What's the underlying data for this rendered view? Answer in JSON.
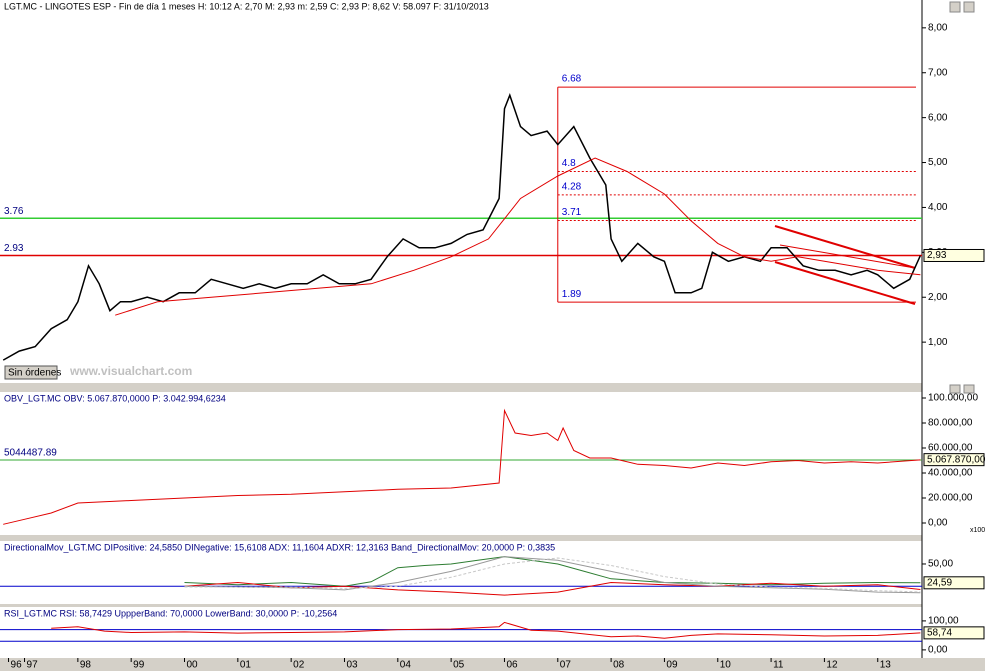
{
  "chart_data": [
    {
      "type": "line",
      "header": "LGT.MC - LINGOTES ESP - Fin de día 1 meses H: 10:12 A: 2,70 M: 2,93 m: 2,59 C: 2,93 P: 8,62 V: 58.097 F: 31/10/2013",
      "watermark": "www.visualchart.com",
      "button": "Sin órdenes",
      "xlim": [
        1996.54,
        2013.83
      ],
      "ylim": [
        0.09,
        8.62
      ],
      "yticks": [
        {
          "value": 8,
          "label": "8,00"
        },
        {
          "value": 7,
          "label": "7,00"
        },
        {
          "value": 6,
          "label": "6,00"
        },
        {
          "value": 5,
          "label": "5,00"
        },
        {
          "value": 4,
          "label": "4,00"
        },
        {
          "value": 3,
          "label": "3,00"
        },
        {
          "value": 2,
          "label": "2,00"
        },
        {
          "value": 1,
          "label": "1,00"
        }
      ],
      "series": [
        {
          "color": "#000000",
          "x": [
            1996.6,
            1996.9,
            1997.2,
            1997.5,
            1997.8,
            1998.0,
            1998.2,
            1998.4,
            1998.6,
            1998.8,
            1999.0,
            1999.3,
            1999.6,
            1999.9,
            2000.2,
            2000.5,
            2000.8,
            2001.1,
            2001.4,
            2001.7,
            2002.0,
            2002.3,
            2002.6,
            2002.9,
            2003.2,
            2003.5,
            2003.8,
            2004.1,
            2004.4,
            2004.7,
            2005.0,
            2005.3,
            2005.6,
            2005.9,
            2006.0,
            2006.1,
            2006.3,
            2006.5,
            2006.8,
            2007.0,
            2007.3,
            2007.6,
            2007.9,
            2008.0,
            2008.2,
            2008.5,
            2008.8,
            2009.0,
            2009.2,
            2009.5,
            2009.7,
            2009.9,
            2010.2,
            2010.5,
            2010.8,
            2011.0,
            2011.3,
            2011.6,
            2011.9,
            2012.2,
            2012.5,
            2012.8,
            2013.0,
            2013.3,
            2013.6,
            2013.8
          ],
          "values": [
            0.6,
            0.8,
            0.9,
            1.3,
            1.5,
            1.9,
            2.7,
            2.3,
            1.7,
            1.9,
            1.9,
            2.0,
            1.9,
            2.1,
            2.1,
            2.4,
            2.3,
            2.2,
            2.3,
            2.2,
            2.3,
            2.3,
            2.5,
            2.3,
            2.3,
            2.4,
            2.9,
            3.3,
            3.1,
            3.1,
            3.2,
            3.4,
            3.5,
            4.2,
            6.2,
            6.5,
            5.8,
            5.6,
            5.7,
            5.4,
            5.8,
            5.1,
            4.5,
            3.3,
            2.8,
            3.2,
            2.9,
            2.8,
            2.1,
            2.1,
            2.2,
            3.0,
            2.8,
            2.9,
            2.8,
            3.1,
            3.1,
            2.7,
            2.6,
            2.6,
            2.5,
            2.6,
            2.5,
            2.2,
            2.4,
            2.93
          ]
        },
        {
          "color": "#e00000",
          "x": [
            1998.7,
            1999.5,
            2000.5,
            2001.5,
            2002.5,
            2003.5,
            2004.3,
            2005.0,
            2005.7,
            2006.3,
            2007.0,
            2007.7,
            2008.3,
            2009.0,
            2009.5,
            2010.0,
            2010.5,
            2011.0,
            2011.5,
            2012.0,
            2012.5,
            2013.0,
            2013.8
          ],
          "values": [
            1.6,
            1.9,
            2.0,
            2.1,
            2.2,
            2.3,
            2.6,
            2.9,
            3.3,
            4.2,
            4.7,
            5.1,
            4.8,
            4.3,
            3.7,
            3.2,
            2.9,
            2.8,
            2.9,
            2.8,
            2.7,
            2.6,
            2.5
          ]
        }
      ],
      "hlines": [
        {
          "value": 3.76,
          "color": "#33cc33"
        },
        {
          "value": 2.93,
          "color": "#e00000"
        }
      ],
      "levels_start": 2007.0,
      "levels": [
        6.68,
        4.8,
        4.28,
        3.71,
        1.89
      ],
      "last": {
        "value": 2.93,
        "label": "2,93"
      }
    },
    {
      "type": "line",
      "header": "OBV_LGT.MC OBV: 5.067.870,0000 P: 3.042.994,6234",
      "scale_note": "x100",
      "xlim": [
        1996.54,
        2013.83
      ],
      "ylim": [
        -9600,
        104800
      ],
      "yticks": [
        {
          "value": 100000,
          "label": "100.000,00"
        },
        {
          "value": 80000,
          "label": "80.000,00"
        },
        {
          "value": 60000,
          "label": "60.000,00"
        },
        {
          "value": 40000,
          "label": "40.000,00"
        },
        {
          "value": 20000,
          "label": "20.000,00"
        },
        {
          "value": 0,
          "label": "0,00"
        }
      ],
      "series": [
        {
          "color": "#e00000",
          "x": [
            1996.6,
            1997.0,
            1997.5,
            1998.0,
            1999.0,
            2000.0,
            2001.0,
            2002.0,
            2003.0,
            2004.0,
            2005.0,
            2005.9,
            2006.0,
            2006.2,
            2006.5,
            2006.8,
            2007.0,
            2007.1,
            2007.3,
            2007.6,
            2008.0,
            2008.5,
            2009.0,
            2009.5,
            2010.0,
            2010.5,
            2011.0,
            2011.5,
            2012.0,
            2012.5,
            2013.0,
            2013.8
          ],
          "values": [
            -1000,
            3000,
            8000,
            16000,
            18000,
            20000,
            22000,
            23000,
            25000,
            27000,
            28000,
            32000,
            90000,
            72000,
            70000,
            72000,
            66000,
            76000,
            58000,
            52000,
            52000,
            47000,
            46000,
            44000,
            48000,
            46000,
            49000,
            50000,
            48000,
            49000,
            48000,
            50500
          ]
        }
      ],
      "hlines": [
        {
          "value": 50444.8789,
          "label": "5044487.89",
          "color": "#33aa33"
        }
      ],
      "last": {
        "value": 50678.7,
        "label": "5.067.870,00"
      }
    },
    {
      "type": "line",
      "header": "DirectionalMov_LGT.MC DIPositive: 24,5850 DINegative: 15,6108 ADX: 11,1604 ADXR: 12,3163 Band_DirectionalMov: 20,0000 P: 0,3835",
      "xlim": [
        1996.54,
        2013.83
      ],
      "ylim": [
        -4,
        81
      ],
      "yticks": [
        {
          "value": 50,
          "label": "50,00"
        }
      ],
      "series": [
        {
          "color": "#2e7d32",
          "x": [
            2000,
            2001,
            2002,
            2003,
            2003.5,
            2004,
            2004.5,
            2005,
            2005.5,
            2006,
            2006.5,
            2007,
            2007.5,
            2008,
            2009,
            2010,
            2011,
            2012,
            2013,
            2013.8
          ],
          "values": [
            25,
            22,
            25,
            20,
            26,
            45,
            48,
            50,
            55,
            60,
            55,
            50,
            40,
            30,
            25,
            24,
            22,
            24,
            25,
            24.59
          ]
        },
        {
          "color": "#e00000",
          "x": [
            2000,
            2001,
            2002,
            2003,
            2004,
            2005,
            2006,
            2007,
            2008,
            2009,
            2010,
            2011,
            2012,
            2013,
            2013.8
          ],
          "values": [
            20,
            25,
            18,
            20,
            15,
            12,
            8,
            12,
            25,
            22,
            20,
            24,
            20,
            22,
            15.61
          ]
        },
        {
          "color": "#999999",
          "x": [
            2000,
            2002,
            2003,
            2004,
            2005,
            2006,
            2007,
            2008,
            2009,
            2010,
            2011,
            2012,
            2013,
            2013.8
          ],
          "values": [
            20,
            18,
            15,
            25,
            40,
            60,
            55,
            40,
            25,
            20,
            18,
            16,
            12,
            11.16
          ]
        },
        {
          "color": "#c8c8c8",
          "x": [
            2000,
            2002,
            2003,
            2004,
            2005,
            2006,
            2007,
            2008,
            2009,
            2010,
            2011,
            2012,
            2013,
            2013.8
          ],
          "values": [
            19,
            19,
            17,
            20,
            32,
            50,
            58,
            48,
            33,
            23,
            19,
            17,
            14,
            12.32
          ]
        }
      ],
      "hlines": [
        {
          "value": 20,
          "color": "#0000cc"
        }
      ],
      "last": {
        "value": 24.59,
        "label": "24,59"
      }
    },
    {
      "type": "line",
      "header": "RSI_LGT.MC RSI: 58,7429 UppperBand: 70,0000 LowerBand: 30,0000 P: -10,2564",
      "xlim": [
        1996.54,
        2013.83
      ],
      "ylim": [
        -28,
        148
      ],
      "yticks": [
        {
          "value": 100,
          "label": "100,00"
        },
        {
          "value": 0,
          "label": "0,00"
        }
      ],
      "xticks": [
        {
          "value": 1996.7,
          "label": "96"
        },
        {
          "value": 1997,
          "label": "97"
        },
        {
          "value": 1998,
          "label": "98"
        },
        {
          "value": 1999,
          "label": "99"
        },
        {
          "value": 2000,
          "label": "00"
        },
        {
          "value": 2001,
          "label": "01"
        },
        {
          "value": 2002,
          "label": "02"
        },
        {
          "value": 2003,
          "label": "03"
        },
        {
          "value": 2004,
          "label": "04"
        },
        {
          "value": 2005,
          "label": "05"
        },
        {
          "value": 2006,
          "label": "06"
        },
        {
          "value": 2007,
          "label": "07"
        },
        {
          "value": 2008,
          "label": "08"
        },
        {
          "value": 2009,
          "label": "09"
        },
        {
          "value": 2010,
          "label": "10"
        },
        {
          "value": 2011,
          "label": "11"
        },
        {
          "value": 2012,
          "label": "12"
        },
        {
          "value": 2013,
          "label": "13"
        }
      ],
      "series": [
        {
          "color": "#e00000",
          "x": [
            1997.5,
            1998.0,
            1998.5,
            1999.0,
            2000.0,
            2001.0,
            2002.0,
            2003.0,
            2004.0,
            2005.0,
            2005.9,
            2006.0,
            2006.5,
            2007.0,
            2008.0,
            2008.5,
            2009.0,
            2009.5,
            2010.0,
            2011.0,
            2012.0,
            2013.0,
            2013.8
          ],
          "values": [
            75,
            80,
            65,
            60,
            62,
            58,
            60,
            62,
            70,
            72,
            80,
            95,
            68,
            65,
            45,
            48,
            40,
            50,
            55,
            52,
            48,
            50,
            58.74
          ]
        }
      ],
      "hlines": [
        {
          "value": 70,
          "color": "#0000cc"
        },
        {
          "value": 30,
          "color": "#0000cc"
        }
      ],
      "last": {
        "value": 58.74,
        "label": "58,74"
      }
    }
  ]
}
